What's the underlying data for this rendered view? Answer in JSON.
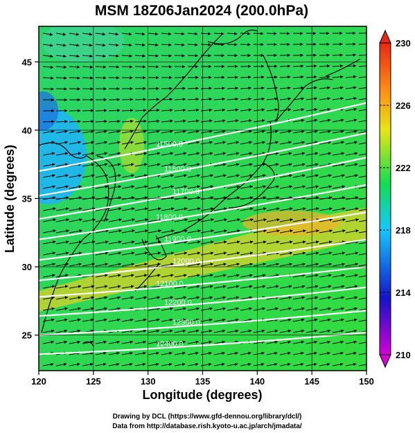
{
  "title": "MSM 18Z06Jan2024 (200.0hPa)",
  "footer": {
    "line1": "Drawing by DCL (https://www.gfd-dennou.org/library/dcl/)",
    "line2": "Data from http://database.rish.kyoto-u.ac.jp/arch/jmadata/"
  },
  "chart_data": {
    "type": "heatmap",
    "title": "MSM 18Z06Jan2024 (200.0hPa)",
    "xlabel": "Longitude (degrees)",
    "ylabel": "Latitude  (degrees)",
    "xlim": [
      120,
      150
    ],
    "ylim": [
      22.4,
      47.6
    ],
    "xticks": [
      "120",
      "125",
      "130",
      "135",
      "140",
      "145",
      "150"
    ],
    "yticks": [
      "25",
      "30",
      "35",
      "40",
      "45"
    ],
    "colorbar": {
      "range": [
        210,
        230
      ],
      "ticks": [
        "210",
        "214",
        "218",
        "222",
        "226",
        "230"
      ],
      "colors": [
        "#d400d4",
        "#1414c8",
        "#14c8ff",
        "#14dc50",
        "#e6e614",
        "#ff8c14",
        "#e62814"
      ]
    },
    "contours": [
      {
        "label": "11500.0",
        "lat_at_120": 37.0,
        "lat_at_150": 42.0
      },
      {
        "label": "11600.0",
        "lat_at_120": 35.2,
        "lat_at_150": 39.8
      },
      {
        "label": "11700.0",
        "lat_at_120": 33.5,
        "lat_at_150": 38.0
      },
      {
        "label": "11800.0",
        "lat_at_120": 32.0,
        "lat_at_150": 36.0
      },
      {
        "label": "11900.0",
        "lat_at_120": 30.5,
        "lat_at_150": 34.0
      },
      {
        "label": "12000.0",
        "lat_at_120": 29.0,
        "lat_at_150": 32.0
      },
      {
        "label": "12100.0",
        "lat_at_120": 27.8,
        "lat_at_150": 30.0
      },
      {
        "label": "12200.0",
        "lat_at_120": 26.4,
        "lat_at_150": 28.5
      },
      {
        "label": "12300.0",
        "lat_at_120": 25.0,
        "lat_at_150": 26.8
      },
      {
        "label": "12400.0",
        "lat_at_120": 23.6,
        "lat_at_150": 25.2
      }
    ],
    "wind_vectors": "westerly flow, west-southwest to east-northeast, strongest 30-36N"
  }
}
